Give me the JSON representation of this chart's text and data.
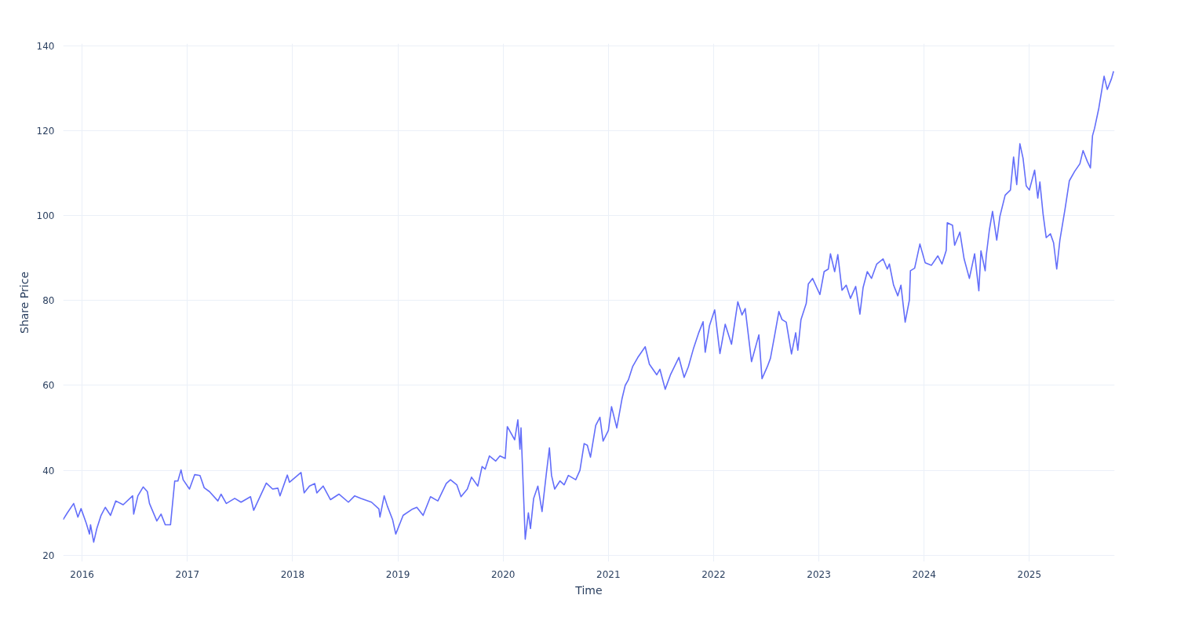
{
  "chart_data": {
    "type": "line",
    "xlabel": "Time",
    "ylabel": "Share Price",
    "xlim": [
      2015.82,
      2025.81
    ],
    "ylim": [
      18.5,
      140.5
    ],
    "xticks": [
      2016,
      2017,
      2018,
      2019,
      2020,
      2021,
      2022,
      2023,
      2024,
      2025
    ],
    "yticks": [
      20,
      40,
      60,
      80,
      100,
      120,
      140
    ],
    "grid": true,
    "x": [
      2015.82,
      2015.86,
      2015.92,
      2015.96,
      2015.99,
      2016.04,
      2016.07,
      2016.08,
      2016.11,
      2016.14,
      2016.18,
      2016.22,
      2016.27,
      2016.32,
      2016.39,
      2016.48,
      2016.49,
      2016.53,
      2016.58,
      2016.62,
      2016.64,
      2016.71,
      2016.75,
      2016.79,
      2016.84,
      2016.88,
      2016.91,
      2016.94,
      2016.96,
      2017.02,
      2017.07,
      2017.12,
      2017.16,
      2017.21,
      2017.29,
      2017.32,
      2017.37,
      2017.45,
      2017.51,
      2017.6,
      2017.63,
      2017.75,
      2017.81,
      2017.86,
      2017.88,
      2017.95,
      2017.97,
      2018.08,
      2018.11,
      2018.16,
      2018.21,
      2018.23,
      2018.29,
      2018.36,
      2018.44,
      2018.53,
      2018.59,
      2018.65,
      2018.75,
      2018.82,
      2018.83,
      2018.87,
      2018.9,
      2018.95,
      2018.98,
      2019.05,
      2019.14,
      2019.18,
      2019.24,
      2019.31,
      2019.38,
      2019.4,
      2019.46,
      2019.5,
      2019.56,
      2019.6,
      2019.66,
      2019.7,
      2019.76,
      2019.8,
      2019.83,
      2019.87,
      2019.93,
      2019.97,
      2020.02,
      2020.04,
      2020.11,
      2020.14,
      2020.16,
      2020.17,
      2020.21,
      2020.24,
      2020.26,
      2020.29,
      2020.33,
      2020.37,
      2020.41,
      2020.44,
      2020.46,
      2020.49,
      2020.54,
      2020.58,
      2020.62,
      2020.69,
      2020.73,
      2020.77,
      2020.8,
      2020.83,
      2020.88,
      2020.92,
      2020.95,
      2021.0,
      2021.03,
      2021.08,
      2021.13,
      2021.16,
      2021.19,
      2021.23,
      2021.28,
      2021.35,
      2021.39,
      2021.46,
      2021.49,
      2021.54,
      2021.59,
      2021.67,
      2021.72,
      2021.76,
      2021.81,
      2021.86,
      2021.9,
      2021.92,
      2021.96,
      2022.01,
      2022.06,
      2022.11,
      2022.17,
      2022.23,
      2022.27,
      2022.3,
      2022.36,
      2022.43,
      2022.46,
      2022.51,
      2022.54,
      2022.58,
      2022.62,
      2022.65,
      2022.69,
      2022.74,
      2022.78,
      2022.8,
      2022.83,
      2022.88,
      2022.9,
      2022.94,
      2023.01,
      2023.05,
      2023.09,
      2023.11,
      2023.15,
      2023.18,
      2023.22,
      2023.26,
      2023.3,
      2023.35,
      2023.39,
      2023.42,
      2023.46,
      2023.5,
      2023.55,
      2023.61,
      2023.65,
      2023.67,
      2023.71,
      2023.75,
      2023.78,
      2023.82,
      2023.86,
      2023.87,
      2023.91,
      2023.96,
      2024.01,
      2024.07,
      2024.13,
      2024.17,
      2024.21,
      2024.22,
      2024.27,
      2024.29,
      2024.34,
      2024.38,
      2024.43,
      2024.48,
      2024.52,
      2024.54,
      2024.58,
      2024.59,
      2024.62,
      2024.65,
      2024.69,
      2024.72,
      2024.77,
      2024.82,
      2024.85,
      2024.88,
      2024.91,
      2024.94,
      2024.97,
      2025.0,
      2025.05,
      2025.08,
      2025.1,
      2025.13,
      2025.16,
      2025.2,
      2025.23,
      2025.26,
      2025.29,
      2025.34,
      2025.38,
      2025.43,
      2025.48,
      2025.51,
      2025.55,
      2025.58,
      2025.6,
      2025.62,
      2025.66,
      2025.71,
      2025.74,
      2025.78,
      2025.8
    ],
    "series": [
      {
        "color": "#636efa",
        "values": [
          28.4,
          30,
          32.2,
          29,
          31,
          27.5,
          25,
          27.2,
          23.1,
          26.3,
          29.4,
          31.3,
          29.4,
          32.8,
          31.9,
          34,
          29.7,
          34,
          36.1,
          35,
          32.2,
          28.1,
          29.7,
          27.2,
          27.2,
          37.5,
          37.5,
          40.1,
          37.8,
          35.6,
          39,
          38.8,
          35.9,
          35,
          32.8,
          34.4,
          32.2,
          33.4,
          32.5,
          33.8,
          30.6,
          37,
          35.6,
          35.8,
          34,
          38.9,
          37.2,
          39.5,
          34.7,
          36.3,
          36.9,
          34.7,
          36.3,
          33.1,
          34.4,
          32.5,
          34,
          33.4,
          32.5,
          30.9,
          29,
          34,
          31.6,
          28.4,
          25,
          29.4,
          30.9,
          31.3,
          29.4,
          33.8,
          32.8,
          33.8,
          36.9,
          37.8,
          36.6,
          33.8,
          35.6,
          38.4,
          36.3,
          40.9,
          40.3,
          43.4,
          42.2,
          43.4,
          42.8,
          50.3,
          47.2,
          51.9,
          45,
          50,
          23.8,
          30,
          26.3,
          33.4,
          36.3,
          30.3,
          39.1,
          45.3,
          38.8,
          35.6,
          37.5,
          36.6,
          38.8,
          37.8,
          40,
          46.3,
          45.9,
          43.1,
          50.6,
          52.5,
          46.9,
          49.4,
          55,
          50,
          56.9,
          60,
          61.3,
          64.4,
          66.6,
          69.1,
          65,
          62.5,
          63.8,
          59.1,
          62.5,
          66.6,
          61.9,
          64.4,
          68.8,
          72.5,
          75,
          67.8,
          74,
          77.8,
          67.5,
          74.4,
          69.7,
          79.7,
          76.6,
          78.1,
          65.6,
          71.9,
          61.6,
          64.4,
          66.4,
          71.8,
          77.4,
          75.5,
          74.9,
          67.4,
          72.4,
          68.3,
          75.5,
          79.3,
          83.9,
          85.2,
          81.4,
          86.8,
          87.4,
          91,
          86.8,
          90.8,
          82.4,
          83.6,
          80.5,
          83.3,
          76.8,
          83,
          86.8,
          85.2,
          88.6,
          89.8,
          87.4,
          88.6,
          83.6,
          81.1,
          83.6,
          74.9,
          80.1,
          87,
          87.6,
          93.3,
          88.9,
          88.3,
          90.5,
          88.6,
          91.8,
          98.3,
          97.7,
          93,
          96.1,
          89.8,
          85.2,
          91,
          82.3,
          91.7,
          87,
          90.5,
          96.6,
          101,
          94.2,
          99.8,
          104.8,
          106,
          113.8,
          107.3,
          116.9,
          113.5,
          107,
          106,
          110.7,
          104.1,
          107.9,
          100.4,
          94.8,
          95.7,
          93.6,
          87.4,
          94.2,
          101.7,
          108.2,
          110.4,
          112.2,
          115.3,
          112.8,
          111.2,
          118.8,
          120.6,
          125.3,
          132.8,
          129.7,
          132.2,
          134
        ]
      }
    ]
  }
}
